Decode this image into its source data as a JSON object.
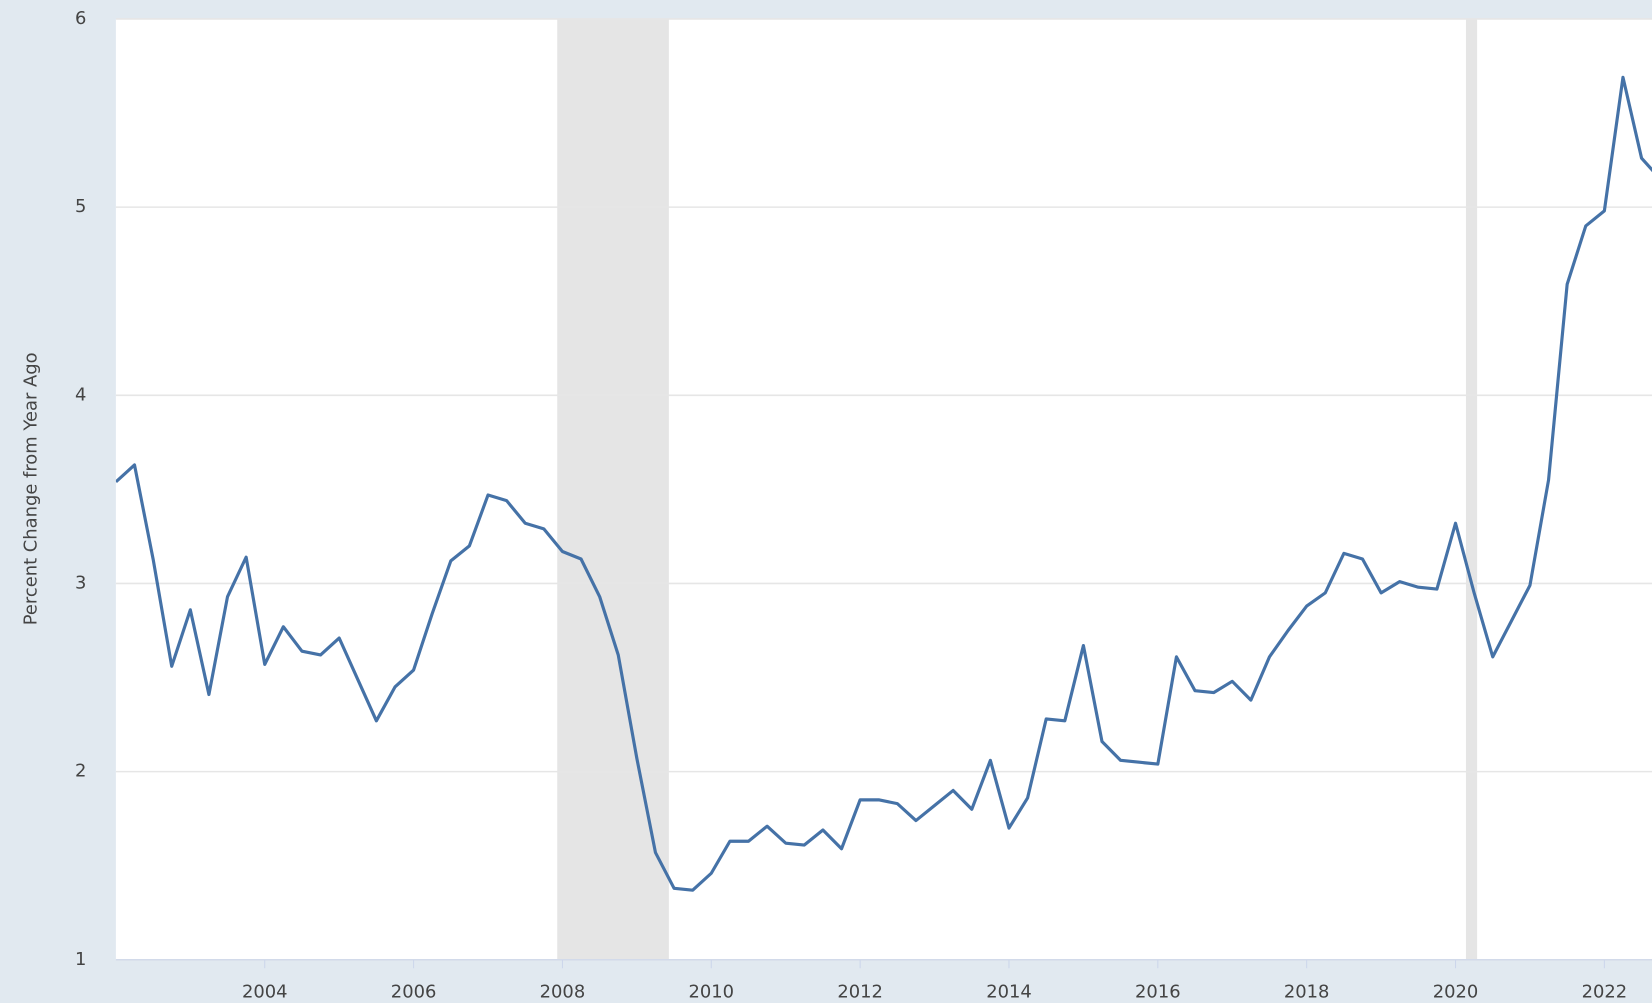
{
  "chart_data": {
    "type": "line",
    "y_label": "Percent Change from Year Ago",
    "x": [
      2002,
      2002.25,
      2002.5,
      2002.75,
      2003,
      2003.25,
      2003.5,
      2003.75,
      2004,
      2004.25,
      2004.5,
      2004.75,
      2005,
      2005.25,
      2005.5,
      2005.75,
      2006,
      2006.25,
      2006.5,
      2006.75,
      2007,
      2007.25,
      2007.5,
      2007.75,
      2008,
      2008.25,
      2008.5,
      2008.75,
      2009,
      2009.25,
      2009.5,
      2009.75,
      2010,
      2010.25,
      2010.5,
      2010.75,
      2011,
      2011.25,
      2011.5,
      2011.75,
      2012,
      2012.25,
      2012.5,
      2012.75,
      2013,
      2013.25,
      2013.5,
      2013.75,
      2014,
      2014.25,
      2014.5,
      2014.75,
      2015,
      2015.25,
      2015.5,
      2015.75,
      2016,
      2016.25,
      2016.5,
      2016.75,
      2017,
      2017.25,
      2017.5,
      2017.75,
      2018,
      2018.25,
      2018.5,
      2018.75,
      2019,
      2019.25,
      2019.5,
      2019.75,
      2020,
      2020.25,
      2020.5,
      2020.75,
      2021,
      2021.25,
      2021.5,
      2021.75,
      2022,
      2022.25,
      2022.5,
      2022.75
    ],
    "series": [
      {
        "color": "#4572a7",
        "values": [
          3.54,
          3.63,
          3.13,
          2.56,
          2.86,
          2.41,
          2.93,
          3.14,
          2.57,
          2.77,
          2.64,
          2.62,
          2.71,
          2.49,
          2.27,
          2.45,
          2.54,
          2.84,
          3.12,
          3.2,
          3.47,
          3.44,
          3.32,
          3.29,
          3.17,
          3.13,
          2.93,
          2.62,
          2.07,
          1.57,
          1.38,
          1.37,
          1.46,
          1.63,
          1.63,
          1.71,
          1.62,
          1.61,
          1.69,
          1.59,
          1.85,
          1.85,
          1.83,
          1.74,
          1.82,
          1.9,
          1.8,
          2.06,
          1.7,
          1.86,
          2.28,
          2.27,
          2.67,
          2.16,
          2.06,
          2.05,
          2.04,
          2.61,
          2.43,
          2.42,
          2.48,
          2.38,
          2.61,
          2.75,
          2.88,
          2.95,
          3.16,
          3.13,
          2.95,
          3.01,
          2.98,
          2.97,
          3.32,
          2.95,
          2.61,
          2.8,
          2.99,
          3.55,
          4.59,
          4.9,
          4.98,
          5.69,
          5.26,
          5.15
        ]
      }
    ],
    "recessions": [
      [
        2007.93,
        2009.43
      ],
      [
        2020.14,
        2020.29
      ]
    ],
    "recession_color": "#e5e5e5",
    "xlim": [
      2002,
      2022.64
    ],
    "xticks": [
      2004,
      2006,
      2008,
      2010,
      2012,
      2014,
      2016,
      2018,
      2020,
      2022
    ],
    "ylim": [
      1,
      6
    ],
    "yticks": [
      1,
      2,
      3,
      4,
      5,
      6
    ],
    "grid": true
  }
}
